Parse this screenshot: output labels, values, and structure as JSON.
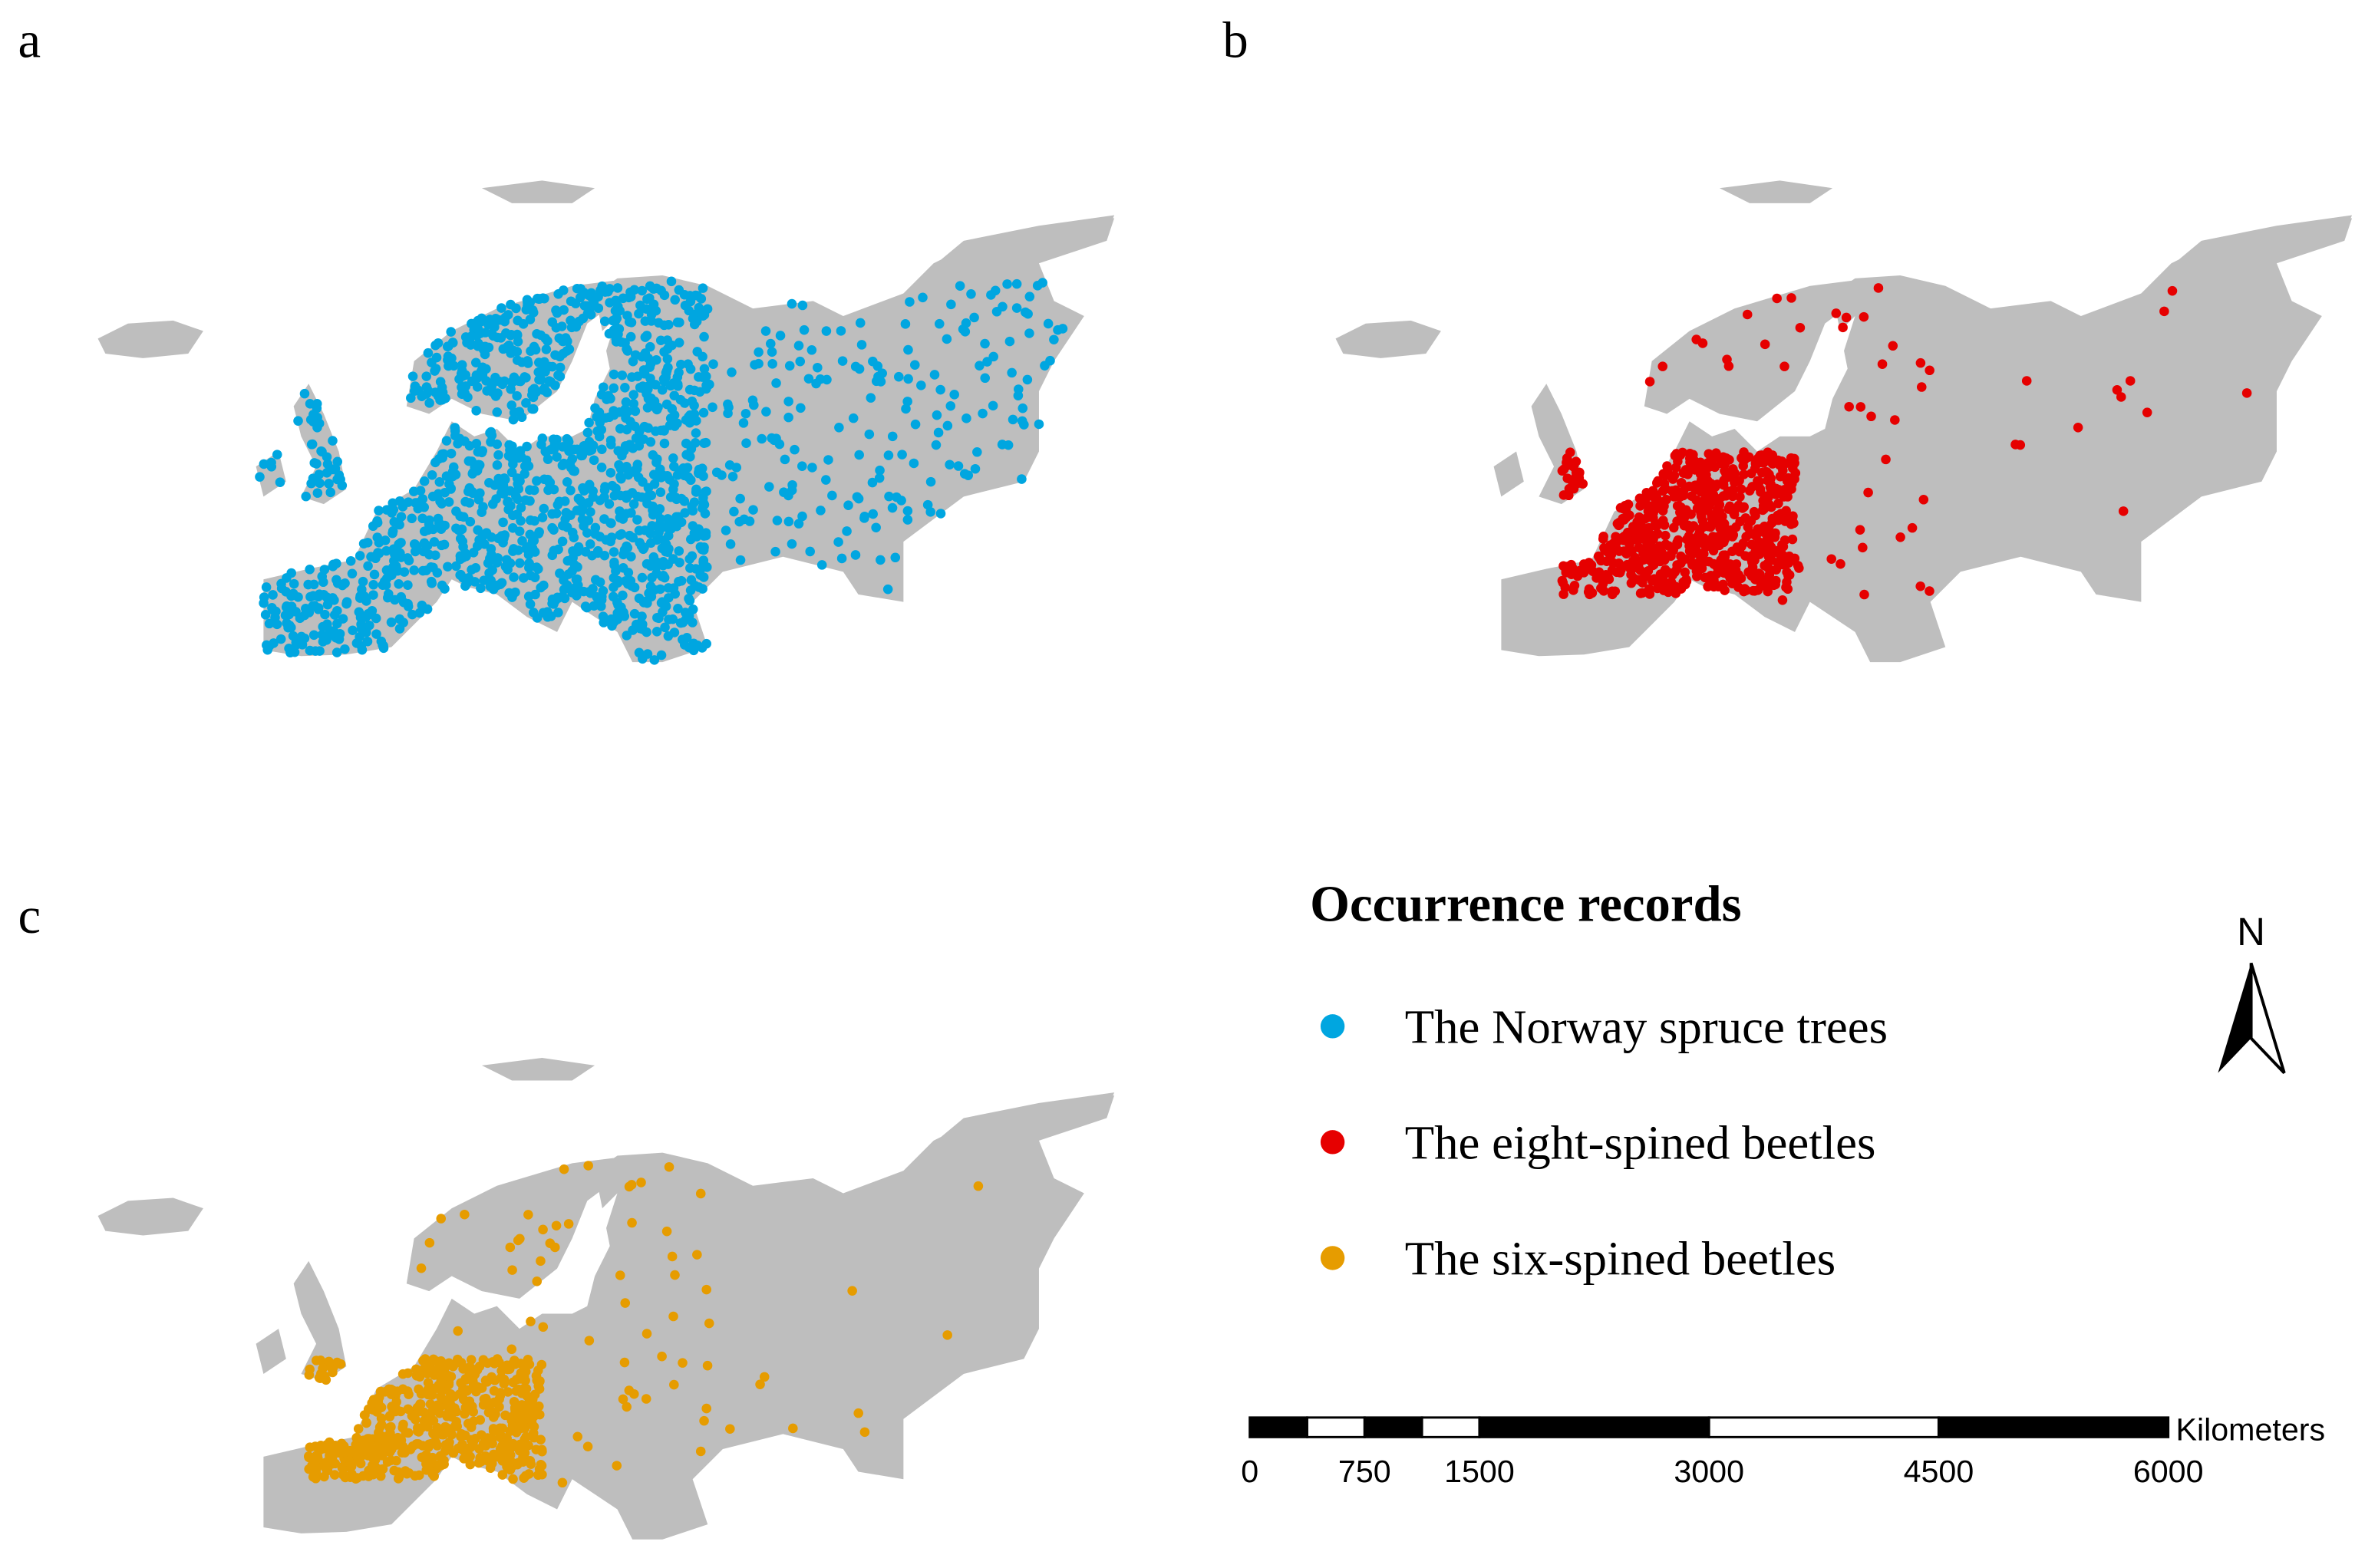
{
  "panels": [
    {
      "label": "a"
    },
    {
      "label": "b"
    },
    {
      "label": "c"
    }
  ],
  "legend": {
    "title": "Occurrence records",
    "entries": [
      {
        "name": "The Norway spruce trees",
        "color": "#00a6e0"
      },
      {
        "name": "The eight-spined beetles",
        "color": "#e60000"
      },
      {
        "name": "The six-spined beetles",
        "color": "#e69c00"
      }
    ]
  },
  "north_arrow": "N",
  "scale_bar": {
    "unit": "Kilometers",
    "ticks": [
      0,
      750,
      1500,
      3000,
      4500,
      6000
    ]
  }
}
